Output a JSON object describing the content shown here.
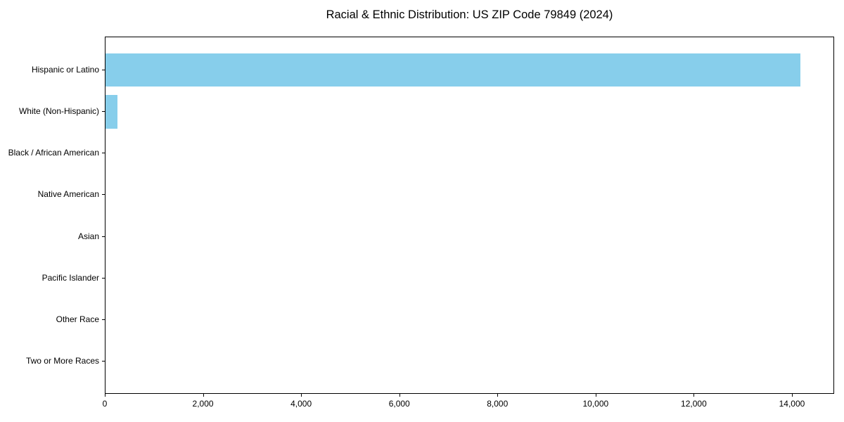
{
  "chart_data": {
    "type": "bar",
    "orientation": "horizontal",
    "title": "Racial & Ethnic Distribution: US ZIP Code 79849 (2024)",
    "categories": [
      "Hispanic or Latino",
      "White (Non-Hispanic)",
      "Black / African American",
      "Native American",
      "Asian",
      "Pacific Islander",
      "Other Race",
      "Two or More Races"
    ],
    "values": [
      14153,
      244,
      0,
      0,
      0,
      0,
      0,
      0
    ],
    "xlabel": "",
    "ylabel": "",
    "xlim": [
      0,
      14860
    ],
    "x_ticks": [
      0,
      2000,
      4000,
      6000,
      8000,
      10000,
      12000,
      14000
    ],
    "x_tick_labels": [
      "0",
      "2,000",
      "4,000",
      "6,000",
      "8,000",
      "10,000",
      "12,000",
      "14,000"
    ],
    "bar_color": "#87CEEB",
    "text_color": "#000000",
    "grid": false,
    "legend": null
  }
}
